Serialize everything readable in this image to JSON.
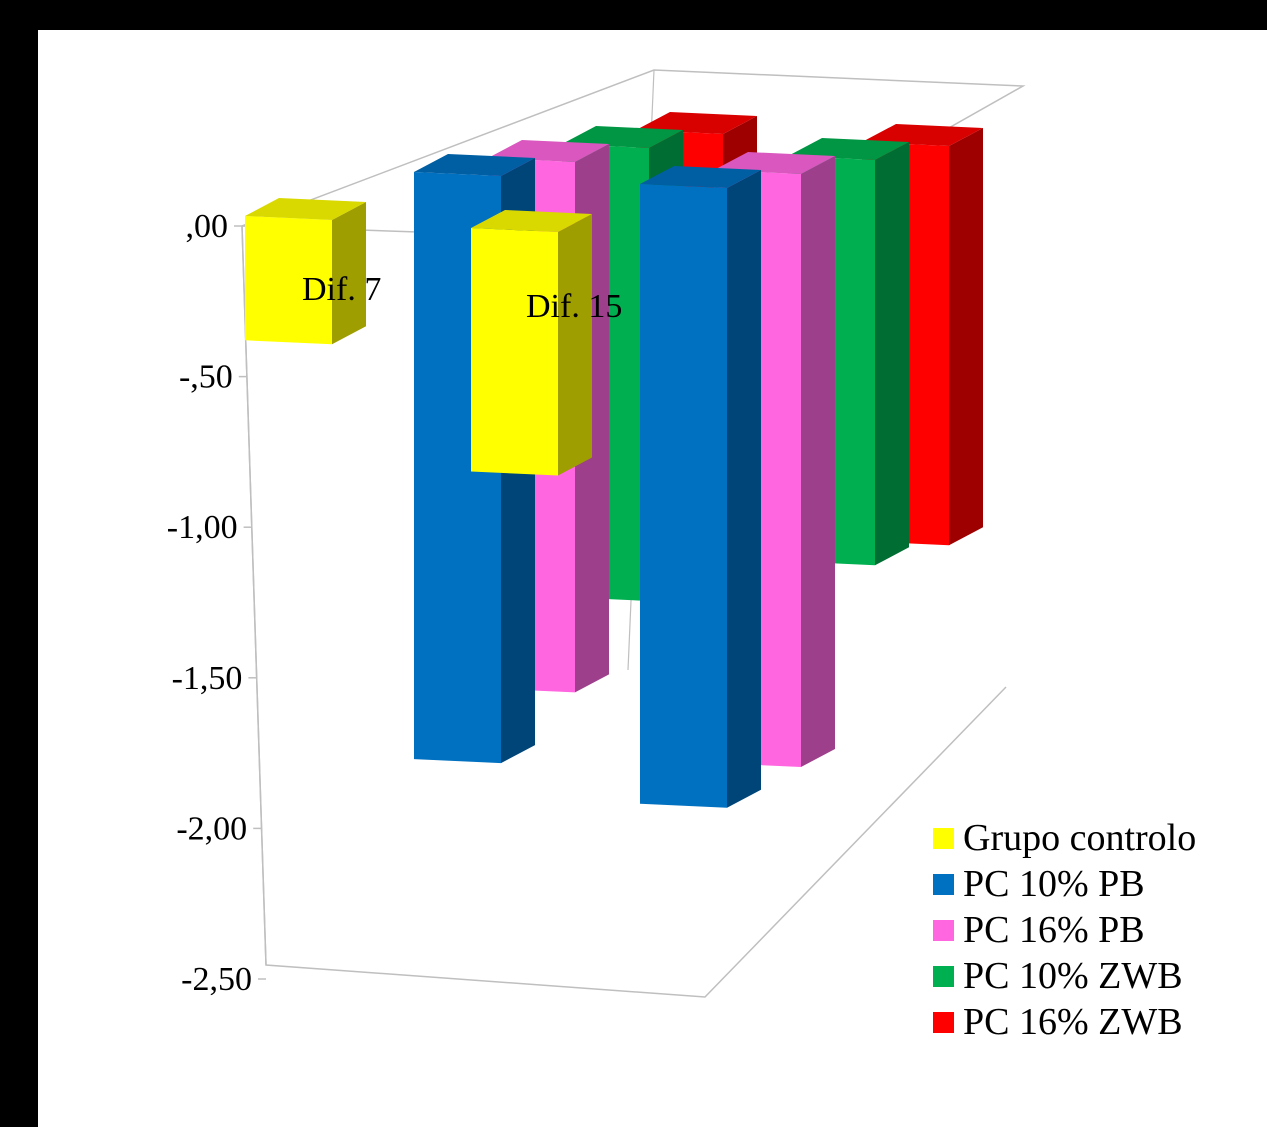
{
  "chart_data": {
    "type": "bar",
    "variant": "3d-clustered-column",
    "categories": [
      "Dif. 7",
      "Dif. 15"
    ],
    "series": [
      {
        "name": "Grupo controlo",
        "color": "#ffff00",
        "values": [
          -0.35,
          -0.75
        ]
      },
      {
        "name": "PC 10% PB",
        "color": "#0070c0",
        "values": [
          -1.97,
          -2.08
        ]
      },
      {
        "name": "PC 16% PB",
        "color": "#ff66e0",
        "values": [
          -1.78,
          -1.99
        ]
      },
      {
        "name": "PC 10% ZWB",
        "color": "#00b050",
        "values": [
          -1.52,
          -1.36
        ]
      },
      {
        "name": "PC 16% ZWB",
        "color": "#ff0000",
        "values": [
          -1.52,
          -1.34
        ]
      }
    ],
    "ylim": [
      -2.5,
      0
    ],
    "yticks": [
      ",00",
      "-,50",
      "-1,00",
      "-1,50",
      "-2,00",
      "-2,50"
    ],
    "grid": false,
    "legend_position": "bottom-right"
  }
}
